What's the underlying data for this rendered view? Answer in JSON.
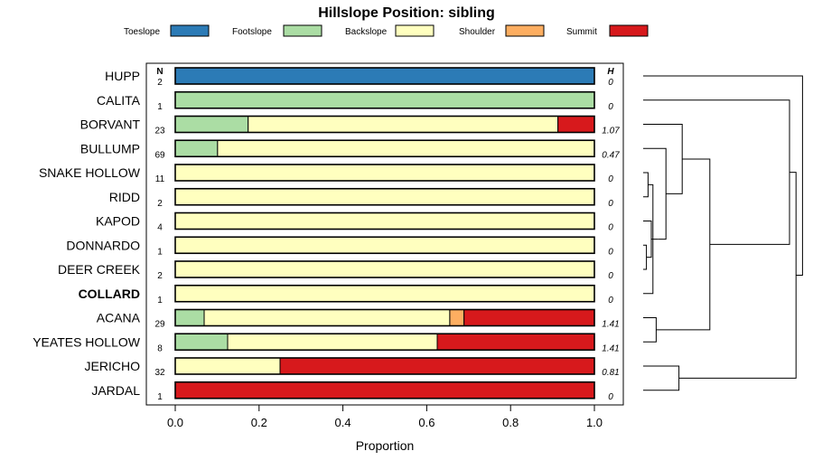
{
  "chart_data": {
    "type": "bar",
    "stacked": true,
    "orientation": "horizontal",
    "title": "Hillslope Position: sibling",
    "xlabel": "Proportion",
    "xlim": [
      0,
      1
    ],
    "x_ticks": [
      "0.0",
      "0.2",
      "0.4",
      "0.6",
      "0.8",
      "1.0"
    ],
    "n_header": "N",
    "h_header": "H",
    "legend_position": "top",
    "highlight_category": "COLLARD",
    "categories": [
      "HUPP",
      "CALITA",
      "BORVANT",
      "BULLUMP",
      "SNAKE HOLLOW",
      "RIDD",
      "KAPOD",
      "DONNARDO",
      "DEER CREEK",
      "COLLARD",
      "ACANA",
      "YEATES HOLLOW",
      "JERICHO",
      "JARDAL"
    ],
    "n": [
      "2",
      "1",
      "23",
      "69",
      "11",
      "2",
      "4",
      "1",
      "2",
      "1",
      "29",
      "8",
      "32",
      "1"
    ],
    "h": [
      "0",
      "0",
      "1.07",
      "0.47",
      "0",
      "0",
      "0",
      "0",
      "0",
      "0",
      "1.41",
      "1.41",
      "0.81",
      "0"
    ],
    "series": [
      {
        "name": "Toeslope",
        "color": "#2c7bb6",
        "values": [
          1,
          0,
          0,
          0,
          0,
          0,
          0,
          0,
          0,
          0,
          0,
          0,
          0,
          0
        ]
      },
      {
        "name": "Footslope",
        "color": "#abdda4",
        "values": [
          0,
          1,
          0.174,
          0.101,
          0,
          0,
          0,
          0,
          0,
          0,
          0.069,
          0.125,
          0,
          0
        ]
      },
      {
        "name": "Backslope",
        "color": "#ffffbf",
        "values": [
          0,
          0,
          0.739,
          0.899,
          1,
          1,
          1,
          1,
          1,
          1,
          0.586,
          0.5,
          0.25,
          0
        ]
      },
      {
        "name": "Shoulder",
        "color": "#fdae61",
        "values": [
          0,
          0,
          0,
          0,
          0,
          0,
          0,
          0,
          0,
          0,
          0.034,
          0,
          0,
          0
        ]
      },
      {
        "name": "Summit",
        "color": "#d7191c",
        "values": [
          0,
          0,
          0.087,
          0,
          0,
          0,
          0,
          0,
          0,
          0,
          0.311,
          0.375,
          0.75,
          1
        ]
      }
    ],
    "dendrogram": {
      "present": true,
      "merges": [
        {
          "a": 7,
          "b": 8,
          "height": 0.02
        },
        {
          "a": 4,
          "b": 5,
          "height": 0.03
        },
        {
          "a": 6,
          "b": "m0",
          "height": 0.05
        },
        {
          "a": "m1",
          "b": 9,
          "height": 0.06
        },
        {
          "a": "m2",
          "b": "m3",
          "height": 0.09
        },
        {
          "a": 10,
          "b": 11,
          "height": 0.08
        },
        {
          "a": 12,
          "b": 13,
          "height": 0.22
        },
        {
          "a": 3,
          "b": "m4",
          "height": 0.14
        },
        {
          "a": 2,
          "b": "m7",
          "height": 0.24
        },
        {
          "a": "m8",
          "b": "m5",
          "height": 0.41
        },
        {
          "a": 1,
          "b": "m9",
          "height": 0.9
        },
        {
          "a": "m10",
          "b": "m6",
          "height": 0.94
        },
        {
          "a": 0,
          "b": "m11",
          "height": 0.98
        }
      ]
    }
  }
}
